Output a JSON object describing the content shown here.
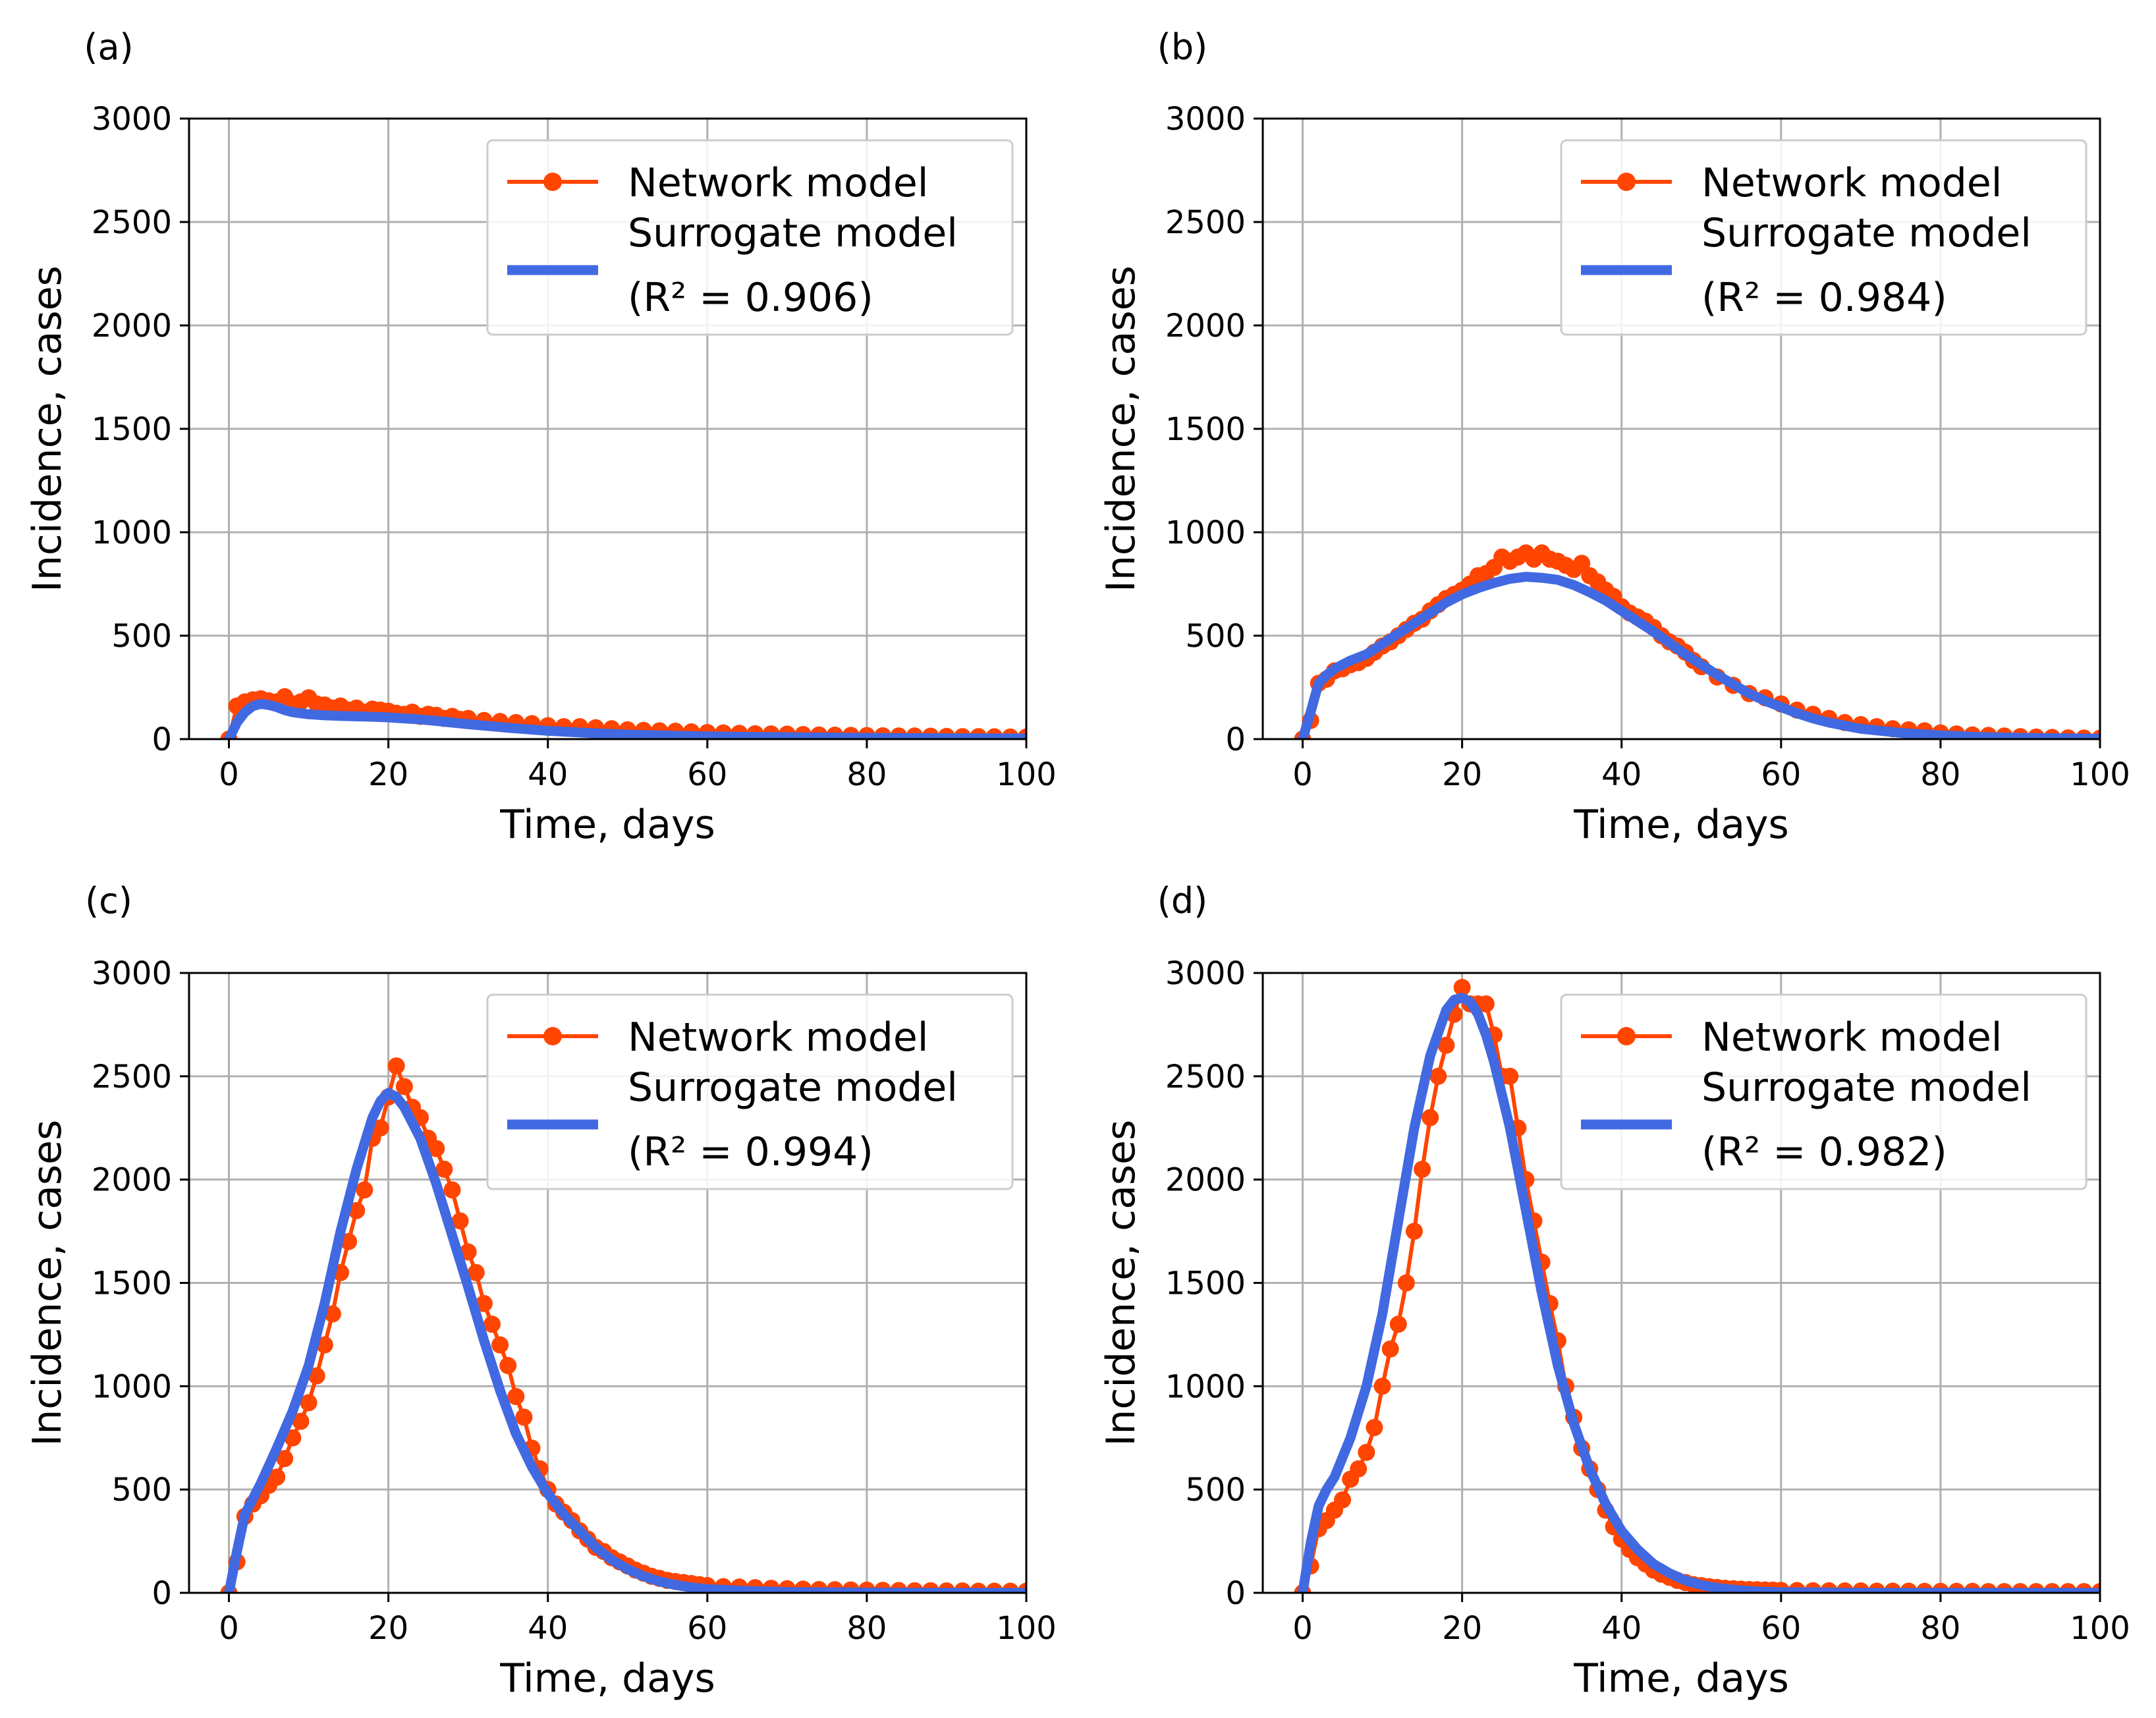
{
  "figure": {
    "panel_labels": [
      "(a)",
      "(b)",
      "(c)",
      "(d)"
    ]
  },
  "colors": {
    "network": "#ff4500",
    "surrogate": "#4169e1",
    "grid": "#b0b0b0",
    "legend_edge": "#cccccc"
  },
  "chart_data": [
    {
      "type": "line",
      "panel": "(a)",
      "xlabel": "Time, days",
      "ylabel": "Incidence, cases",
      "xlim": [
        -5,
        100
      ],
      "ylim": [
        0,
        3000
      ],
      "xticks": [
        0,
        20,
        40,
        60,
        80,
        100
      ],
      "yticks": [
        0,
        500,
        1000,
        1500,
        2000,
        2500,
        3000
      ],
      "grid": true,
      "legend_position": "top-right",
      "legend": [
        "Network model",
        "Surrogate model",
        "(R² = 0.906)"
      ],
      "r2": 0.906,
      "series": [
        {
          "name": "Network model",
          "marker": "circle",
          "x": [
            0,
            1,
            2,
            3,
            4,
            5,
            6,
            7,
            8,
            9,
            10,
            11,
            12,
            13,
            14,
            15,
            16,
            17,
            18,
            19,
            20,
            21,
            22,
            23,
            24,
            25,
            26,
            27,
            28,
            29,
            30,
            32,
            34,
            36,
            38,
            40,
            42,
            44,
            46,
            48,
            50,
            52,
            54,
            56,
            58,
            60,
            62,
            64,
            66,
            68,
            70,
            72,
            74,
            76,
            78,
            80,
            82,
            84,
            86,
            88,
            90,
            92,
            94,
            96,
            98,
            100
          ],
          "values": [
            0,
            160,
            180,
            190,
            195,
            185,
            180,
            205,
            170,
            180,
            200,
            170,
            165,
            150,
            160,
            140,
            150,
            130,
            145,
            140,
            135,
            125,
            120,
            130,
            110,
            120,
            115,
            100,
            110,
            95,
            100,
            90,
            85,
            80,
            75,
            65,
            60,
            60,
            55,
            50,
            45,
            42,
            40,
            38,
            35,
            32,
            30,
            28,
            26,
            25,
            24,
            22,
            20,
            19,
            18,
            17,
            16,
            15,
            15,
            14,
            13,
            12,
            12,
            11,
            10,
            10
          ]
        },
        {
          "name": "Surrogate model",
          "x": [
            0,
            1,
            2,
            3,
            4,
            5,
            6,
            7,
            8,
            9,
            10,
            12,
            14,
            16,
            18,
            20,
            22,
            24,
            26,
            28,
            30,
            35,
            40,
            45,
            50,
            55,
            60,
            70,
            80,
            90,
            100
          ],
          "values": [
            0,
            80,
            130,
            160,
            170,
            165,
            155,
            140,
            130,
            125,
            120,
            115,
            112,
            110,
            108,
            105,
            100,
            95,
            88,
            80,
            72,
            55,
            40,
            30,
            22,
            17,
            13,
            9,
            6,
            4,
            3
          ]
        }
      ]
    },
    {
      "type": "line",
      "panel": "(b)",
      "xlabel": "Time, days",
      "ylabel": "Incidence, cases",
      "xlim": [
        -5,
        100
      ],
      "ylim": [
        0,
        3000
      ],
      "xticks": [
        0,
        20,
        40,
        60,
        80,
        100
      ],
      "yticks": [
        0,
        500,
        1000,
        1500,
        2000,
        2500,
        3000
      ],
      "grid": true,
      "legend_position": "top-right",
      "legend": [
        "Network model",
        "Surrogate model",
        "(R² = 0.984)"
      ],
      "r2": 0.984,
      "series": [
        {
          "name": "Network model",
          "marker": "circle",
          "x": [
            0,
            1,
            2,
            3,
            4,
            5,
            6,
            7,
            8,
            9,
            10,
            11,
            12,
            13,
            14,
            15,
            16,
            17,
            18,
            19,
            20,
            21,
            22,
            23,
            24,
            25,
            26,
            27,
            28,
            29,
            30,
            31,
            32,
            33,
            34,
            35,
            36,
            37,
            38,
            39,
            40,
            41,
            42,
            43,
            44,
            45,
            46,
            47,
            48,
            49,
            50,
            52,
            54,
            56,
            58,
            60,
            62,
            64,
            66,
            68,
            70,
            72,
            74,
            76,
            78,
            80,
            82,
            84,
            86,
            88,
            90,
            92,
            94,
            96,
            98,
            100
          ],
          "values": [
            0,
            90,
            270,
            290,
            330,
            340,
            360,
            370,
            390,
            420,
            450,
            470,
            500,
            530,
            560,
            580,
            620,
            650,
            680,
            700,
            720,
            750,
            790,
            800,
            830,
            880,
            860,
            880,
            900,
            870,
            900,
            870,
            860,
            840,
            820,
            850,
            790,
            760,
            720,
            690,
            640,
            610,
            590,
            570,
            540,
            500,
            470,
            450,
            420,
            380,
            350,
            300,
            260,
            220,
            200,
            170,
            140,
            120,
            100,
            80,
            70,
            60,
            50,
            45,
            40,
            30,
            25,
            20,
            18,
            15,
            12,
            10,
            8,
            6,
            5,
            4
          ]
        },
        {
          "name": "Surrogate model",
          "x": [
            0,
            1,
            2,
            3,
            4,
            6,
            8,
            10,
            12,
            14,
            16,
            18,
            20,
            22,
            24,
            26,
            28,
            30,
            32,
            34,
            36,
            38,
            40,
            42,
            44,
            46,
            48,
            50,
            52,
            54,
            56,
            58,
            60,
            62,
            64,
            66,
            68,
            70,
            75,
            80,
            85,
            90,
            95,
            100
          ],
          "values": [
            0,
            130,
            270,
            310,
            340,
            380,
            410,
            460,
            510,
            560,
            610,
            660,
            700,
            730,
            755,
            775,
            785,
            780,
            770,
            745,
            710,
            670,
            620,
            570,
            520,
            465,
            410,
            360,
            310,
            265,
            220,
            185,
            155,
            125,
            100,
            80,
            65,
            50,
            30,
            18,
            10,
            6,
            4,
            2
          ]
        }
      ]
    },
    {
      "type": "line",
      "panel": "(c)",
      "xlabel": "Time, days",
      "ylabel": "Incidence, cases",
      "xlim": [
        -5,
        100
      ],
      "ylim": [
        0,
        3000
      ],
      "xticks": [
        0,
        20,
        40,
        60,
        80,
        100
      ],
      "yticks": [
        0,
        500,
        1000,
        1500,
        2000,
        2500,
        3000
      ],
      "grid": true,
      "legend_position": "top-right",
      "legend": [
        "Network model",
        "Surrogate model",
        "(R² = 0.994)"
      ],
      "r2": 0.994,
      "series": [
        {
          "name": "Network model",
          "marker": "circle",
          "x": [
            0,
            1,
            2,
            3,
            4,
            5,
            6,
            7,
            8,
            9,
            10,
            11,
            12,
            13,
            14,
            15,
            16,
            17,
            18,
            19,
            20,
            21,
            22,
            23,
            24,
            25,
            26,
            27,
            28,
            29,
            30,
            31,
            32,
            33,
            34,
            35,
            36,
            37,
            38,
            39,
            40,
            41,
            42,
            43,
            44,
            45,
            46,
            47,
            48,
            49,
            50,
            51,
            52,
            53,
            54,
            55,
            56,
            57,
            58,
            59,
            60,
            62,
            64,
            66,
            68,
            70,
            72,
            74,
            76,
            78,
            80,
            82,
            84,
            86,
            88,
            90,
            92,
            94,
            96,
            98,
            100
          ],
          "values": [
            0,
            150,
            370,
            430,
            470,
            520,
            560,
            650,
            750,
            830,
            920,
            1050,
            1200,
            1350,
            1550,
            1700,
            1850,
            1950,
            2200,
            2250,
            2400,
            2550,
            2450,
            2350,
            2300,
            2200,
            2150,
            2050,
            1950,
            1800,
            1650,
            1550,
            1400,
            1300,
            1200,
            1100,
            950,
            850,
            700,
            600,
            500,
            430,
            390,
            350,
            300,
            260,
            220,
            200,
            170,
            150,
            130,
            110,
            95,
            80,
            70,
            60,
            55,
            50,
            45,
            40,
            35,
            30,
            28,
            25,
            22,
            20,
            18,
            16,
            15,
            14,
            13,
            12,
            11,
            10,
            10,
            9,
            9,
            8,
            8,
            8,
            8
          ]
        },
        {
          "name": "Surrogate model",
          "x": [
            0,
            1,
            2,
            4,
            6,
            8,
            10,
            12,
            14,
            16,
            18,
            19,
            20,
            21,
            22,
            24,
            26,
            28,
            30,
            32,
            34,
            36,
            38,
            40,
            42,
            44,
            46,
            48,
            50,
            52,
            54,
            56,
            58,
            60,
            65,
            70,
            80,
            90,
            100
          ],
          "values": [
            0,
            200,
            380,
            530,
            700,
            880,
            1100,
            1400,
            1750,
            2050,
            2300,
            2380,
            2420,
            2400,
            2350,
            2200,
            1980,
            1730,
            1480,
            1220,
            980,
            770,
            610,
            480,
            380,
            300,
            220,
            160,
            115,
            80,
            55,
            38,
            26,
            18,
            9,
            4,
            1,
            0,
            0
          ]
        }
      ]
    },
    {
      "type": "line",
      "panel": "(d)",
      "xlabel": "Time, days",
      "ylabel": "Incidence, cases",
      "xlim": [
        -5,
        100
      ],
      "ylim": [
        0,
        3000
      ],
      "xticks": [
        0,
        20,
        40,
        60,
        80,
        100
      ],
      "yticks": [
        0,
        500,
        1000,
        1500,
        2000,
        2500,
        3000
      ],
      "grid": true,
      "legend_position": "top-right",
      "legend": [
        "Network model",
        "Surrogate model",
        "(R² = 0.982)"
      ],
      "r2": 0.982,
      "series": [
        {
          "name": "Network model",
          "marker": "circle",
          "x": [
            0,
            1,
            2,
            3,
            4,
            5,
            6,
            7,
            8,
            9,
            10,
            11,
            12,
            13,
            14,
            15,
            16,
            17,
            18,
            19,
            20,
            21,
            22,
            23,
            24,
            25,
            26,
            27,
            28,
            29,
            30,
            31,
            32,
            33,
            34,
            35,
            36,
            37,
            38,
            39,
            40,
            41,
            42,
            43,
            44,
            45,
            46,
            47,
            48,
            49,
            50,
            51,
            52,
            53,
            54,
            55,
            56,
            57,
            58,
            59,
            60,
            62,
            64,
            66,
            68,
            70,
            72,
            74,
            76,
            78,
            80,
            82,
            84,
            86,
            88,
            90,
            92,
            94,
            96,
            98,
            100
          ],
          "values": [
            0,
            130,
            310,
            350,
            400,
            450,
            550,
            600,
            680,
            800,
            1000,
            1180,
            1300,
            1500,
            1750,
            2050,
            2300,
            2500,
            2650,
            2800,
            2930,
            2850,
            2850,
            2850,
            2700,
            2500,
            2500,
            2250,
            2000,
            1800,
            1600,
            1400,
            1220,
            1000,
            850,
            700,
            600,
            500,
            400,
            320,
            260,
            210,
            170,
            140,
            110,
            90,
            75,
            60,
            50,
            40,
            35,
            30,
            26,
            22,
            20,
            18,
            16,
            15,
            14,
            13,
            12,
            11,
            10,
            10,
            9,
            9,
            8,
            8,
            8,
            7,
            7,
            7,
            7,
            6,
            6,
            6,
            6,
            6,
            6,
            6,
            6
          ]
        },
        {
          "name": "Surrogate model",
          "x": [
            0,
            1,
            2,
            3,
            4,
            6,
            8,
            10,
            12,
            14,
            16,
            18,
            19,
            20,
            21,
            22,
            23,
            24,
            26,
            28,
            30,
            32,
            34,
            36,
            38,
            40,
            42,
            44,
            46,
            48,
            50,
            52,
            54,
            56,
            58,
            60,
            70,
            80,
            90,
            100
          ],
          "values": [
            0,
            240,
            420,
            500,
            560,
            750,
            1000,
            1350,
            1800,
            2250,
            2600,
            2820,
            2870,
            2880,
            2860,
            2800,
            2700,
            2570,
            2250,
            1850,
            1450,
            1100,
            820,
            600,
            430,
            300,
            210,
            140,
            95,
            60,
            38,
            24,
            15,
            9,
            5,
            3,
            0,
            0,
            0,
            0
          ]
        }
      ]
    }
  ]
}
